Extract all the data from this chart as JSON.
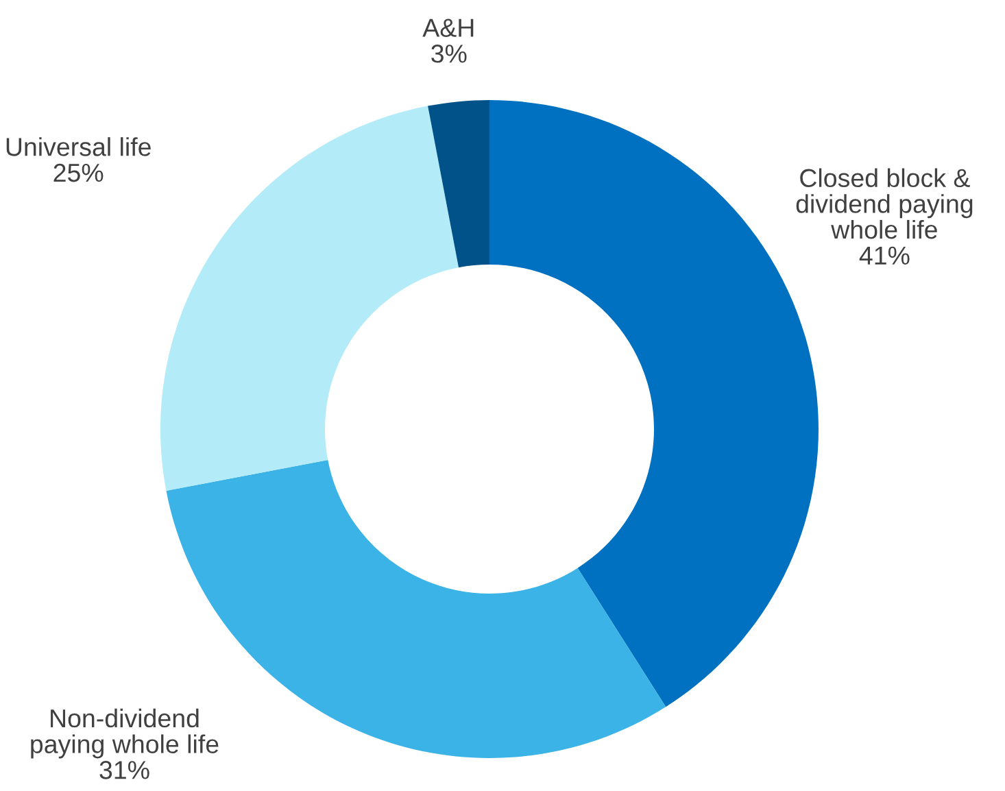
{
  "chart_data": {
    "type": "donut",
    "categories": [
      "Closed block &\ndividend paying\nwhole life",
      "Non-dividend\npaying whole life",
      "Universal life",
      "A&H"
    ],
    "values": [
      41,
      31,
      25,
      3
    ],
    "colors": [
      "#0070c0",
      "#3bb3e6",
      "#b3ecf8",
      "#005288"
    ],
    "value_labels": [
      "41%",
      "31%",
      "25%",
      "3%"
    ]
  }
}
